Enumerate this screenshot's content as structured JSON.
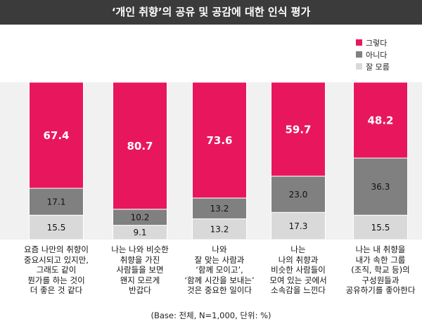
{
  "chart_data": {
    "type": "bar",
    "stacked": true,
    "title": "‘개인 취향’의 공유 및 공감에 대한 인식 평가",
    "categories": [
      "요즘 나만의 취향이\n중요시되고 있지만,\n그래도 같이\n뭔가를 하는 것이\n더 좋은 것 같다",
      "나는 나와 비슷한\n취향을 가진\n사람들을 보면\n왠지 모르게\n반갑다",
      "나와\n잘 맞는 사람과\n‘함께 모이고’,\n‘함께 시간을 보내는’\n것은 중요한 일이다",
      "나는\n나의 취향과\n비슷한 사람들이\n모여 있는 곳에서\n소속감을 느낀다",
      "나는 내 취향을\n내가 속한 그룹\n(조직, 학교 등)의\n구성원들과\n공유하기를 좋아한다"
    ],
    "series": [
      {
        "name": "그렇다",
        "color": "#e8175d",
        "values": [
          67.4,
          80.7,
          73.6,
          59.7,
          48.2
        ]
      },
      {
        "name": "아니다",
        "color": "#808080",
        "values": [
          17.1,
          10.2,
          13.2,
          23.0,
          36.3
        ]
      },
      {
        "name": "잘 모름",
        "color": "#d9d9d9",
        "values": [
          15.5,
          9.1,
          13.2,
          17.3,
          15.5
        ]
      }
    ],
    "ylim": [
      0,
      100
    ],
    "legend_position": "top-right",
    "note": "(Base: 전체, N=1,000, 단위: %)"
  }
}
